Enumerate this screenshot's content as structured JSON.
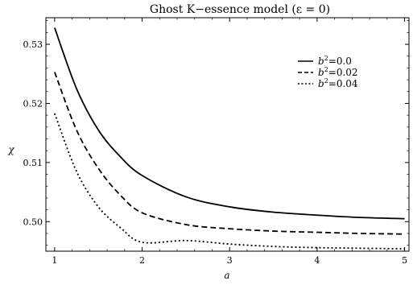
{
  "chart_data": {
    "type": "line",
    "title": "Ghost K−essence model (ε = 0)",
    "xlabel": "a",
    "ylabel": "χ",
    "xlim": [
      0.9,
      5.05
    ],
    "ylim": [
      0.495,
      0.5345
    ],
    "x_ticks": [
      1,
      2,
      3,
      4,
      5
    ],
    "y_ticks": [
      0.5,
      0.51,
      0.52,
      0.53
    ],
    "x_tick_labels": [
      "1",
      "2",
      "3",
      "4",
      "5"
    ],
    "y_tick_labels": [
      "0.50",
      "0.51",
      "0.52",
      "0.53"
    ],
    "grid": false,
    "legend_position": "top-right",
    "colors": {
      "line": "#000000",
      "axis": "#000000",
      "background": "#ffffff"
    },
    "x": [
      1.0,
      1.25,
      1.5,
      1.75,
      2.0,
      2.5,
      3.0,
      3.5,
      4.0,
      4.5,
      5.0
    ],
    "series": [
      {
        "name_prefix": "b",
        "name_sup": "2",
        "name_value": "=0.0",
        "style": "solid",
        "values": [
          0.5328,
          0.5225,
          0.5155,
          0.511,
          0.5078,
          0.5042,
          0.5025,
          0.5016,
          0.5011,
          0.5007,
          0.5005
        ]
      },
      {
        "name_prefix": "b",
        "name_sup": "2",
        "name_value": "=0.02",
        "style": "dashed",
        "values": [
          0.5253,
          0.5155,
          0.509,
          0.5045,
          0.5015,
          0.4995,
          0.4988,
          0.4984,
          0.4982,
          0.498,
          0.4979
        ]
      },
      {
        "name_prefix": "b",
        "name_sup": "2",
        "name_value": "=0.04",
        "style": "dotted",
        "values": [
          0.5183,
          0.5085,
          0.5025,
          0.499,
          0.4965,
          0.4968,
          0.4962,
          0.4958,
          0.4956,
          0.4955,
          0.4954
        ]
      }
    ]
  }
}
